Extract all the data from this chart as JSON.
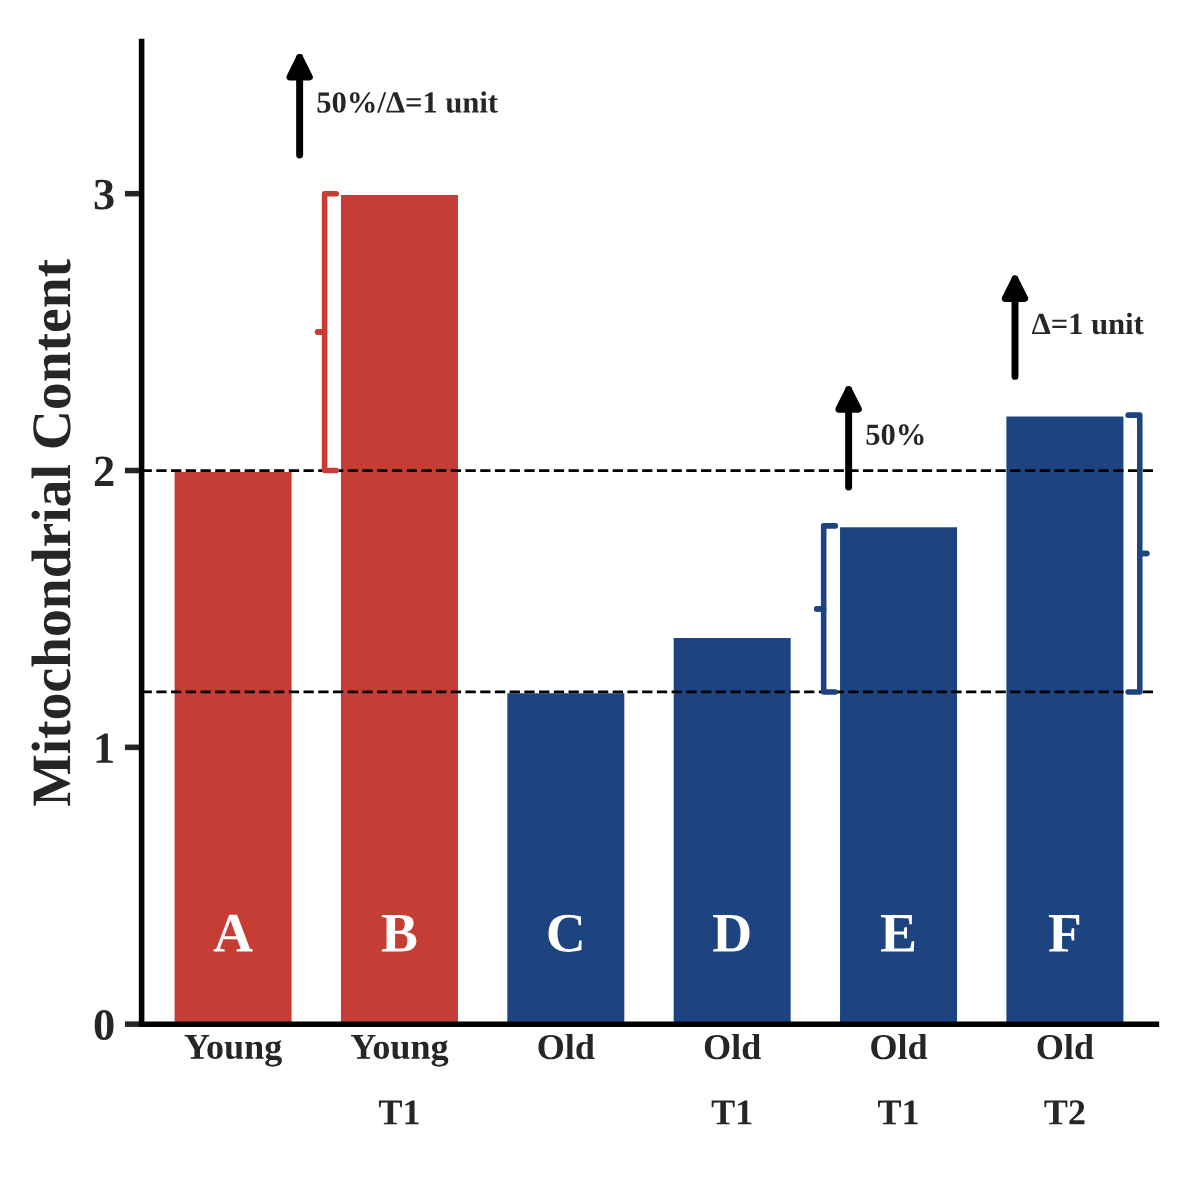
{
  "chart_data": {
    "type": "bar",
    "ylabel": "Mitochondrial Content",
    "categories": [
      "Young",
      "Young\nT1",
      "Old",
      "Old\nT1",
      "Old\nT1",
      "Old\nT2"
    ],
    "values": [
      2,
      3,
      1.2,
      1.4,
      1.8,
      2.2
    ],
    "colors": [
      "#c63d36",
      "#c63d36",
      "#1d4380",
      "#1d4380",
      "#1d4380",
      "#1d4380"
    ],
    "ylim": [
      0,
      3.55
    ],
    "yticks": [
      0,
      1,
      2,
      3
    ],
    "grid": false,
    "ref_lines": [
      {
        "axis": "y",
        "value": 2,
        "line_style": "dashed",
        "color": "#000000"
      },
      {
        "axis": "y",
        "value": 1.2,
        "line_style": "dashed",
        "color": "#000000"
      }
    ],
    "annotations": [
      "A",
      "B",
      "C",
      "D",
      "E",
      "F",
      "50%/Δ=1 unit",
      "50%",
      "Δ=1 unit"
    ]
  }
}
